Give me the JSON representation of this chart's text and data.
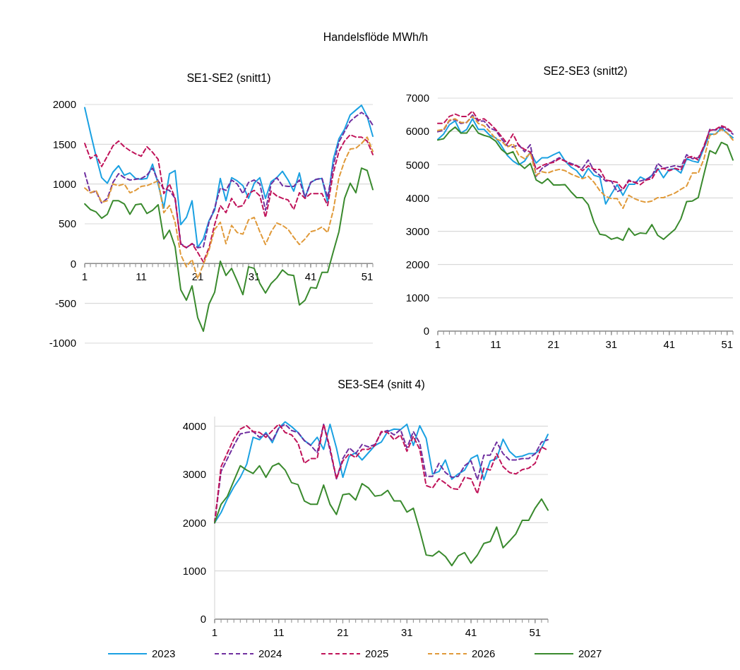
{
  "chart_data": [
    {
      "type": "line",
      "title": "SE1-SE2 (snitt1)",
      "annotations": [
        "Handelsflöde MWh/h"
      ],
      "x": [
        1,
        2,
        3,
        4,
        5,
        6,
        7,
        8,
        9,
        10,
        11,
        12,
        13,
        14,
        15,
        16,
        17,
        18,
        19,
        20,
        21,
        22,
        23,
        24,
        25,
        26,
        27,
        28,
        29,
        30,
        31,
        32,
        33,
        34,
        35,
        36,
        37,
        38,
        39,
        40,
        41,
        42,
        43,
        44,
        45,
        46,
        47,
        48,
        49,
        50,
        51,
        52
      ],
      "xlim": [
        1,
        52
      ],
      "xticks": [
        1,
        11,
        21,
        31,
        41,
        51
      ],
      "ylim": [
        -1000,
        2000
      ],
      "yticks": [
        -1000,
        -500,
        0,
        500,
        1000,
        1500,
        2000
      ],
      "grid": "y",
      "legend": "bottom",
      "series": [
        {
          "name": "2023",
          "color": "#1ba1e2",
          "line_style": "solid",
          "values": [
            1960,
            1650,
            1350,
            1080,
            1010,
            1150,
            1230,
            1110,
            1140,
            1070,
            1060,
            1070,
            1250,
            1000,
            700,
            1130,
            1170,
            490,
            580,
            790,
            200,
            310,
            540,
            670,
            1070,
            790,
            1080,
            1040,
            980,
            820,
            1010,
            1080,
            820,
            1030,
            1080,
            1160,
            1050,
            910,
            1140,
            830,
            1020,
            1060,
            1070,
            770,
            1310,
            1570,
            1690,
            1870,
            1930,
            1990,
            1850,
            1600
          ]
        },
        {
          "name": "2024",
          "color": "#7030a0",
          "line_style": "dashed",
          "values": [
            1140,
            890,
            910,
            760,
            820,
            1020,
            1130,
            1080,
            1050,
            1060,
            1070,
            1110,
            1200,
            1040,
            940,
            920,
            820,
            250,
            200,
            250,
            200,
            210,
            520,
            700,
            950,
            920,
            1050,
            1000,
            880,
            1020,
            1050,
            1000,
            670,
            1000,
            1080,
            980,
            970,
            970,
            1050,
            830,
            1020,
            1060,
            1070,
            830,
            1230,
            1530,
            1660,
            1790,
            1850,
            1900,
            1850,
            1740
          ]
        },
        {
          "name": "2025",
          "color": "#c0145a",
          "line_style": "dashed",
          "values": [
            1510,
            1320,
            1370,
            1220,
            1350,
            1480,
            1540,
            1470,
            1420,
            1380,
            1350,
            1470,
            1400,
            1310,
            880,
            1000,
            820,
            240,
            200,
            250,
            140,
            20,
            200,
            490,
            730,
            640,
            820,
            710,
            730,
            880,
            920,
            850,
            580,
            910,
            850,
            820,
            800,
            680,
            890,
            820,
            880,
            880,
            880,
            730,
            1140,
            1410,
            1540,
            1620,
            1590,
            1590,
            1540,
            1370
          ]
        },
        {
          "name": "2026",
          "color": "#e09a3a",
          "line_style": "dashed",
          "values": [
            950,
            890,
            920,
            770,
            790,
            1000,
            980,
            1000,
            890,
            920,
            970,
            980,
            1010,
            1040,
            640,
            730,
            520,
            110,
            -40,
            50,
            -190,
            -10,
            170,
            430,
            520,
            250,
            480,
            390,
            370,
            550,
            580,
            400,
            240,
            400,
            510,
            480,
            430,
            330,
            240,
            310,
            400,
            420,
            460,
            390,
            670,
            1080,
            1290,
            1440,
            1450,
            1510,
            1590,
            1410
          ]
        },
        {
          "name": "2027",
          "color": "#3a8a2e",
          "line_style": "solid",
          "values": [
            750,
            680,
            650,
            570,
            620,
            790,
            790,
            750,
            620,
            740,
            750,
            630,
            670,
            740,
            310,
            420,
            210,
            -330,
            -460,
            -280,
            -680,
            -850,
            -510,
            -360,
            30,
            -150,
            -60,
            -220,
            -390,
            -40,
            -60,
            -250,
            -370,
            -250,
            -180,
            -80,
            -140,
            -150,
            -520,
            -460,
            -300,
            -310,
            -110,
            -110,
            150,
            400,
            820,
            1010,
            890,
            1200,
            1170,
            930
          ]
        }
      ]
    },
    {
      "type": "line",
      "title": "SE2-SE3 (snitt2)",
      "x": [
        1,
        2,
        3,
        4,
        5,
        6,
        7,
        8,
        9,
        10,
        11,
        12,
        13,
        14,
        15,
        16,
        17,
        18,
        19,
        20,
        21,
        22,
        23,
        24,
        25,
        26,
        27,
        28,
        29,
        30,
        31,
        32,
        33,
        34,
        35,
        36,
        37,
        38,
        39,
        40,
        41,
        42,
        43,
        44,
        45,
        46,
        47,
        48,
        49,
        50,
        51,
        52
      ],
      "xlim": [
        1,
        52
      ],
      "xticks": [
        1,
        11,
        21,
        31,
        41,
        51
      ],
      "ylim": [
        0,
        7000
      ],
      "yticks": [
        0,
        1000,
        2000,
        3000,
        4000,
        5000,
        6000,
        7000
      ],
      "grid": "y",
      "series": [
        {
          "color": "#1ba1e2",
          "line_style": "solid",
          "values": [
            5760,
            5920,
            6200,
            6320,
            5950,
            6060,
            6380,
            6060,
            6060,
            5880,
            5810,
            5570,
            5280,
            5110,
            5000,
            5110,
            5380,
            5050,
            5210,
            5210,
            5300,
            5380,
            5110,
            4930,
            4820,
            4600,
            4890,
            4680,
            4630,
            3820,
            4120,
            4400,
            4080,
            4410,
            4410,
            4630,
            4540,
            4680,
            4890,
            4610,
            4860,
            4880,
            4750,
            5180,
            5110,
            5070,
            5500,
            5920,
            5920,
            6110,
            5950,
            5810
          ]
        },
        {
          "color": "#7030a0",
          "line_style": "dashed",
          "values": [
            5990,
            6040,
            6320,
            6360,
            6240,
            6270,
            6490,
            6310,
            6310,
            6100,
            6030,
            5780,
            5570,
            5530,
            5600,
            5390,
            5600,
            4650,
            4890,
            5000,
            5110,
            5210,
            5110,
            5040,
            4970,
            4890,
            5140,
            4820,
            4680,
            4510,
            4510,
            4190,
            4260,
            4540,
            4470,
            4510,
            4560,
            4650,
            5040,
            4890,
            4930,
            4970,
            4930,
            5300,
            5180,
            5210,
            5530,
            6060,
            6040,
            6130,
            6060,
            5920
          ]
        },
        {
          "color": "#c0145a",
          "line_style": "dashed",
          "values": [
            6240,
            6240,
            6450,
            6520,
            6450,
            6450,
            6610,
            6340,
            6380,
            6240,
            6060,
            5850,
            5630,
            5920,
            5570,
            5460,
            5380,
            4860,
            4970,
            5040,
            5070,
            5180,
            5110,
            5000,
            4970,
            4820,
            4970,
            4860,
            4860,
            4540,
            4510,
            4470,
            4260,
            4510,
            4470,
            4400,
            4540,
            4580,
            4860,
            4890,
            4820,
            4890,
            4840,
            5210,
            5250,
            5140,
            5570,
            6030,
            6060,
            6170,
            6100,
            5950
          ]
        },
        {
          "color": "#e09a3a",
          "line_style": "dashed",
          "values": [
            6030,
            6060,
            6340,
            6380,
            6270,
            6270,
            6450,
            6240,
            6170,
            5990,
            5780,
            5710,
            5530,
            5630,
            5280,
            5180,
            5350,
            4680,
            4790,
            4750,
            4820,
            4860,
            4820,
            4720,
            4650,
            4580,
            4650,
            4470,
            4220,
            4050,
            3980,
            3980,
            3690,
            4080,
            3980,
            3910,
            3870,
            3910,
            4010,
            4010,
            4080,
            4150,
            4260,
            4360,
            4750,
            4750,
            5180,
            5880,
            5920,
            6060,
            5950,
            5740
          ]
        },
        {
          "color": "#3a8a2e",
          "line_style": "solid",
          "values": [
            5740,
            5780,
            5990,
            6130,
            5950,
            5950,
            6200,
            5950,
            5880,
            5830,
            5710,
            5460,
            5320,
            5390,
            5040,
            4890,
            5040,
            4540,
            4440,
            4580,
            4390,
            4390,
            4400,
            4190,
            4010,
            4010,
            3800,
            3270,
            2910,
            2880,
            2760,
            2810,
            2730,
            3090,
            2880,
            2950,
            2930,
            3200,
            2880,
            2760,
            2910,
            3060,
            3370,
            3890,
            3910,
            4010,
            4720,
            5420,
            5330,
            5670,
            5590,
            5140
          ]
        }
      ]
    },
    {
      "type": "line",
      "title": "SE3-SE4 (snitt 4)",
      "x": [
        1,
        2,
        3,
        4,
        5,
        6,
        7,
        8,
        9,
        10,
        11,
        12,
        13,
        14,
        15,
        16,
        17,
        18,
        19,
        20,
        21,
        22,
        23,
        24,
        25,
        26,
        27,
        28,
        29,
        30,
        31,
        32,
        33,
        34,
        35,
        36,
        37,
        38,
        39,
        40,
        41,
        42,
        43,
        44,
        45,
        46,
        47,
        48,
        49,
        50,
        51,
        52,
        53
      ],
      "xlim": [
        1,
        53
      ],
      "xticks": [
        1,
        11,
        21,
        31,
        41,
        51
      ],
      "ylim": [
        0,
        4200
      ],
      "yticks": [
        0,
        1000,
        2000,
        3000,
        4000
      ],
      "grid": "y",
      "series": [
        {
          "color": "#1ba1e2",
          "line_style": "solid",
          "values": [
            2000,
            2210,
            2500,
            2740,
            2940,
            3210,
            3770,
            3720,
            3870,
            3660,
            3960,
            4090,
            3990,
            3870,
            3700,
            3610,
            3770,
            3520,
            4040,
            3550,
            2940,
            3380,
            3450,
            3300,
            3450,
            3600,
            3670,
            3890,
            3940,
            3930,
            4040,
            3600,
            4010,
            3750,
            3010,
            3060,
            3300,
            2900,
            3010,
            3090,
            3330,
            3400,
            2890,
            3280,
            3330,
            3730,
            3480,
            3360,
            3380,
            3430,
            3430,
            3550,
            3830
          ]
        },
        {
          "color": "#7030a0",
          "line_style": "dashed",
          "values": [
            2000,
            3060,
            3330,
            3600,
            3840,
            3870,
            3890,
            3770,
            3840,
            3700,
            3960,
            4040,
            3910,
            3870,
            3700,
            3600,
            3450,
            4040,
            3500,
            2910,
            3330,
            3550,
            3430,
            3620,
            3570,
            3620,
            3870,
            3910,
            3820,
            3930,
            3550,
            3890,
            3650,
            2960,
            2960,
            3230,
            3040,
            2940,
            2960,
            3180,
            3280,
            2890,
            3400,
            3400,
            3670,
            3430,
            3300,
            3300,
            3330,
            3330,
            3430,
            3670,
            3720
          ]
        },
        {
          "color": "#c0145a",
          "line_style": "dashed",
          "values": [
            2000,
            3160,
            3450,
            3740,
            3940,
            4010,
            3890,
            3870,
            3770,
            3910,
            4040,
            3870,
            3820,
            3650,
            3230,
            3330,
            3330,
            4040,
            3550,
            2910,
            3280,
            3430,
            3350,
            3520,
            3520,
            3600,
            3890,
            3870,
            3720,
            3820,
            3480,
            3790,
            3520,
            2770,
            2720,
            2910,
            2820,
            2710,
            2690,
            2940,
            2910,
            2600,
            3130,
            3090,
            3430,
            3160,
            3040,
            3010,
            3100,
            3130,
            3230,
            3570,
            3500
          ]
        },
        {
          "color": "#3a8a2e",
          "line_style": "solid",
          "values": [
            2000,
            2380,
            2550,
            2870,
            3180,
            3090,
            3020,
            3180,
            2940,
            3170,
            3230,
            3090,
            2830,
            2790,
            2450,
            2380,
            2380,
            2780,
            2380,
            2170,
            2580,
            2600,
            2470,
            2810,
            2720,
            2550,
            2570,
            2670,
            2450,
            2450,
            2220,
            2300,
            1840,
            1330,
            1310,
            1410,
            1300,
            1110,
            1310,
            1380,
            1160,
            1330,
            1570,
            1610,
            1910,
            1480,
            1620,
            1770,
            2050,
            2050,
            2300,
            2490,
            2260
          ]
        }
      ]
    }
  ]
}
